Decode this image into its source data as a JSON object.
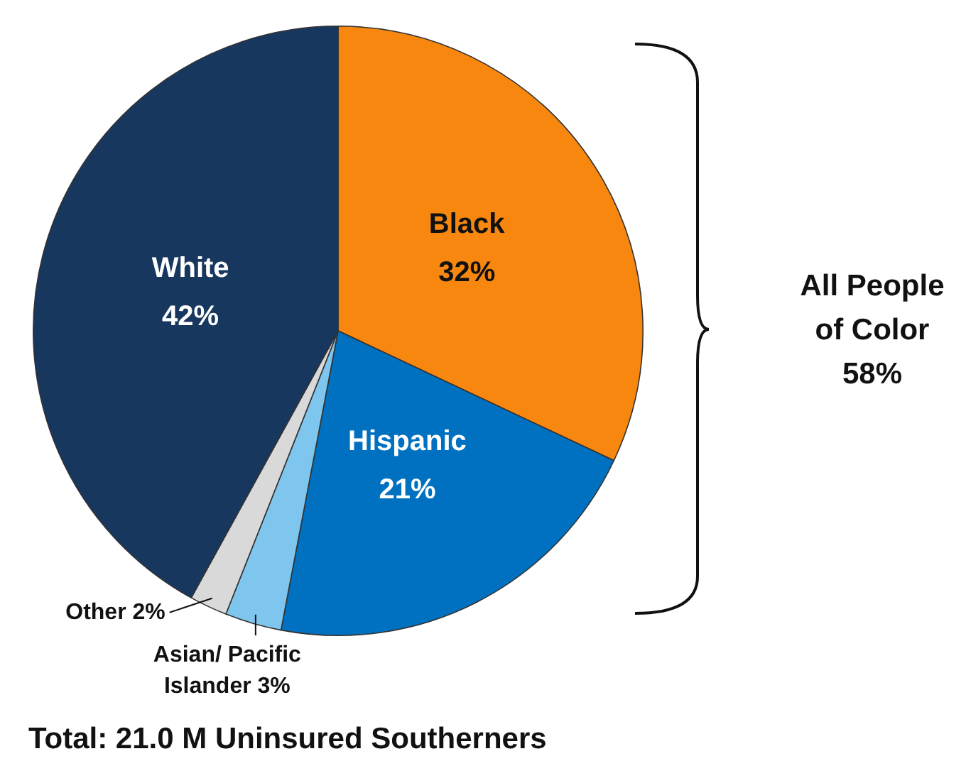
{
  "chart_data": {
    "type": "pie",
    "categories": [
      "Black",
      "Hispanic",
      "Asian/ Pacific Islander",
      "Other",
      "White"
    ],
    "values": [
      32,
      21,
      3,
      2,
      42
    ],
    "colors": [
      "#f7870f",
      "#0070c0",
      "#7fc6ee",
      "#d9d9d9",
      "#17375e"
    ],
    "value_labels": [
      "32%",
      "21%",
      "3%",
      "2%",
      "42%"
    ],
    "annotations": [
      "All People of Color 58%",
      "Total: 21.0 M Uninsured Southerners"
    ]
  }
}
